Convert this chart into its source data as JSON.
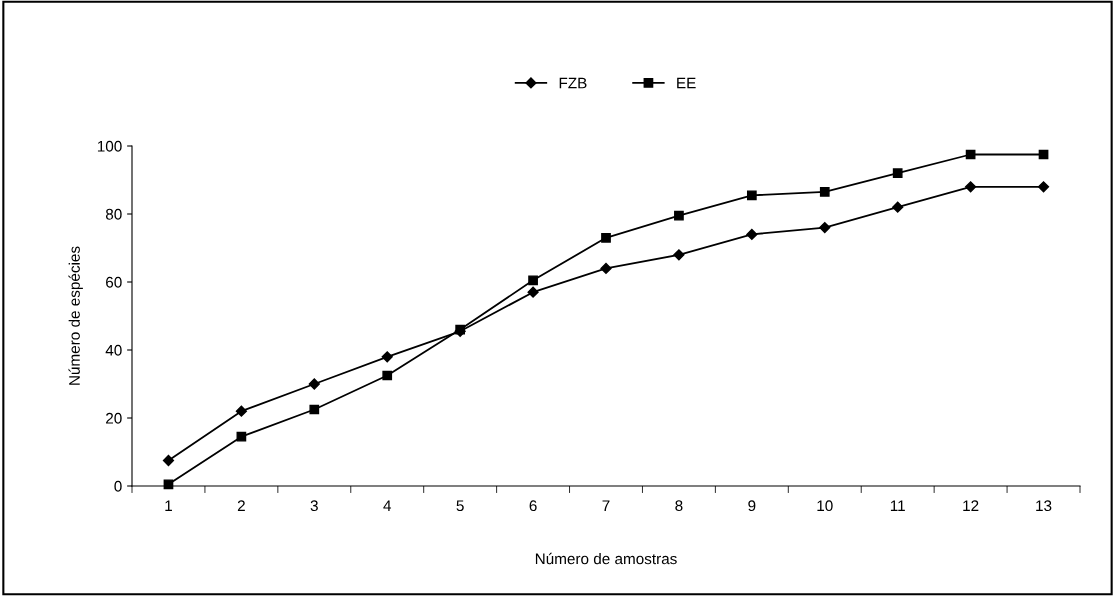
{
  "chart_data": {
    "type": "line",
    "xlabel": "Número de amostras",
    "ylabel": "Número de espécies",
    "categories": [
      "1",
      "2",
      "3",
      "4",
      "5",
      "6",
      "7",
      "8",
      "9",
      "10",
      "11",
      "12",
      "13"
    ],
    "series": [
      {
        "name": "FZB",
        "color": "#000000",
        "marker": "diamond",
        "values": [
          7.5,
          22,
          30,
          38,
          45.5,
          57,
          64,
          68,
          74,
          76,
          82,
          88,
          88
        ]
      },
      {
        "name": "EE",
        "color": "#000000",
        "marker": "square",
        "values": [
          0.5,
          14.5,
          22.5,
          32.5,
          46,
          60.5,
          73,
          79.5,
          85.5,
          86.5,
          92,
          97.5,
          97.5
        ]
      }
    ],
    "ylim": [
      0,
      100
    ],
    "yticks": [
      0,
      20,
      40,
      60,
      80,
      100
    ],
    "grid": false,
    "legend": "top",
    "line_style": "solid"
  }
}
